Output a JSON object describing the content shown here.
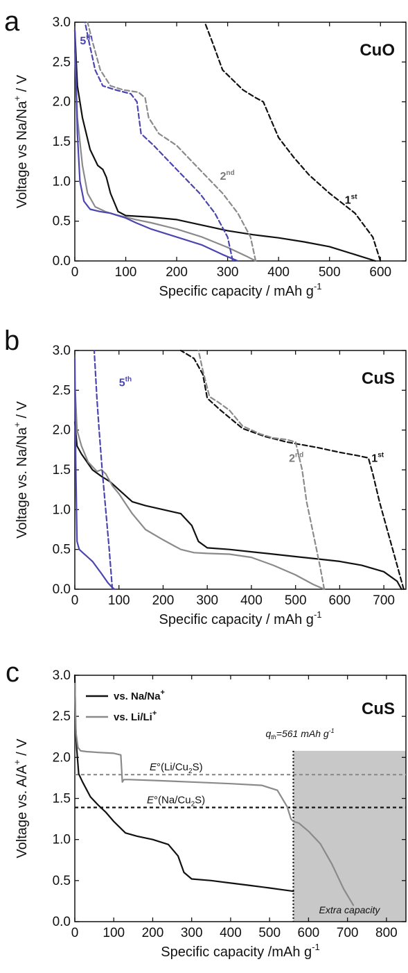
{
  "colors": {
    "black": "#111111",
    "gray": "#8a8a8a",
    "blue": "#4b45b0",
    "shade": "#c8c8c8"
  },
  "chart_data": [
    {
      "panel": "a",
      "type": "line",
      "sample_label": "CuO",
      "xlabel_main": "Specific capacity / mAh g",
      "xlabel_sup": "-1",
      "ylabel_main": "Voltage vs Na/Na",
      "ylabel_sup": "+",
      "ylabel_tail": " / V",
      "xlim": [
        0,
        650
      ],
      "ylim": [
        0,
        3.0
      ],
      "xticks": [
        0,
        100,
        200,
        300,
        400,
        500,
        600
      ],
      "yticks": [
        0.0,
        0.5,
        1.0,
        1.5,
        2.0,
        2.5,
        3.0
      ],
      "cycle_labels": [
        {
          "base": "1",
          "sup": "st",
          "color": "black",
          "x": 530,
          "y": 0.72
        },
        {
          "base": "2",
          "sup": "nd",
          "color": "gray",
          "x": 285,
          "y": 1.02
        },
        {
          "base": "5",
          "sup": "th",
          "color": "blue",
          "x": 10,
          "y": 2.72
        }
      ],
      "series": [
        {
          "cycle": "1st",
          "curve": "discharge",
          "color": "black",
          "dash": false,
          "x": [
            0,
            5,
            15,
            30,
            45,
            55,
            62,
            70,
            85,
            100,
            150,
            200,
            250,
            300,
            350,
            400,
            450,
            500,
            550,
            590
          ],
          "y": [
            2.9,
            2.2,
            1.8,
            1.4,
            1.2,
            1.15,
            1.05,
            0.85,
            0.62,
            0.57,
            0.55,
            0.52,
            0.45,
            0.38,
            0.33,
            0.29,
            0.24,
            0.18,
            0.08,
            0.0
          ]
        },
        {
          "cycle": "1st",
          "curve": "charge",
          "color": "black",
          "dash": true,
          "x": [
            600,
            585,
            550,
            500,
            460,
            430,
            400,
            380,
            370,
            355,
            330,
            290,
            270,
            255
          ],
          "y": [
            0.0,
            0.3,
            0.6,
            0.85,
            1.08,
            1.3,
            1.55,
            1.85,
            2.0,
            2.05,
            2.15,
            2.4,
            2.75,
            3.0
          ]
        },
        {
          "cycle": "2nd",
          "curve": "discharge",
          "color": "gray",
          "dash": false,
          "x": [
            0,
            5,
            15,
            25,
            40,
            60,
            80,
            100,
            120,
            150,
            200,
            250,
            300,
            340,
            355
          ],
          "y": [
            2.6,
            1.8,
            1.2,
            0.85,
            0.68,
            0.62,
            0.58,
            0.55,
            0.52,
            0.48,
            0.4,
            0.3,
            0.17,
            0.05,
            0.0
          ]
        },
        {
          "cycle": "2nd",
          "curve": "charge",
          "color": "gray",
          "dash": true,
          "x": [
            355,
            345,
            320,
            290,
            260,
            230,
            200,
            165,
            145,
            138,
            125,
            95,
            70,
            50,
            35,
            25
          ],
          "y": [
            0.0,
            0.3,
            0.6,
            0.85,
            1.05,
            1.25,
            1.45,
            1.6,
            1.8,
            2.05,
            2.12,
            2.15,
            2.2,
            2.4,
            2.75,
            3.0
          ]
        },
        {
          "cycle": "5th",
          "curve": "discharge",
          "color": "blue",
          "dash": false,
          "x": [
            0,
            5,
            10,
            18,
            30,
            50,
            70,
            90,
            100,
            120,
            150,
            200,
            250,
            290,
            320
          ],
          "y": [
            2.9,
            1.6,
            1.0,
            0.75,
            0.65,
            0.62,
            0.6,
            0.56,
            0.54,
            0.48,
            0.4,
            0.3,
            0.2,
            0.08,
            0.0
          ]
        },
        {
          "cycle": "5th",
          "curve": "charge",
          "color": "blue",
          "dash": true,
          "x": [
            310,
            300,
            275,
            245,
            215,
            185,
            155,
            130,
            122,
            110,
            80,
            55,
            40,
            28,
            20
          ],
          "y": [
            0.0,
            0.3,
            0.6,
            0.85,
            1.05,
            1.25,
            1.45,
            1.6,
            2.0,
            2.1,
            2.15,
            2.2,
            2.4,
            2.75,
            3.0
          ]
        }
      ]
    },
    {
      "panel": "b",
      "type": "line",
      "sample_label": "CuS",
      "xlabel_main": "Specific capacity / mAh g",
      "xlabel_sup": "-1",
      "ylabel_main": "Voltage vs. Na/Na",
      "ylabel_sup": "+",
      "ylabel_tail": " / V",
      "xlim": [
        0,
        750
      ],
      "ylim": [
        0,
        3.0
      ],
      "xticks": [
        0,
        100,
        200,
        300,
        400,
        500,
        600,
        700
      ],
      "yticks": [
        0.0,
        0.5,
        1.0,
        1.5,
        2.0,
        2.5,
        3.0
      ],
      "cycle_labels": [
        {
          "base": "1",
          "sup": "st",
          "color": "black",
          "x": 672,
          "y": 1.6
        },
        {
          "base": "2",
          "sup": "nd",
          "color": "gray",
          "x": 485,
          "y": 1.6
        },
        {
          "base": "5",
          "sup": "th",
          "color": "blue",
          "x": 100,
          "y": 2.55
        }
      ],
      "series": [
        {
          "cycle": "1st",
          "curve": "discharge",
          "color": "black",
          "dash": false,
          "x": [
            0,
            5,
            15,
            40,
            60,
            80,
            100,
            130,
            160,
            200,
            240,
            265,
            280,
            300,
            350,
            400,
            450,
            500,
            550,
            600,
            650,
            700,
            730,
            740
          ],
          "y": [
            2.1,
            1.8,
            1.7,
            1.5,
            1.42,
            1.35,
            1.25,
            1.1,
            1.05,
            1.0,
            0.95,
            0.8,
            0.6,
            0.52,
            0.5,
            0.47,
            0.44,
            0.41,
            0.38,
            0.35,
            0.3,
            0.22,
            0.1,
            0.0
          ]
        },
        {
          "cycle": "1st",
          "curve": "charge",
          "color": "black",
          "dash": true,
          "x": [
            745,
            730,
            710,
            690,
            675,
            665,
            640,
            600,
            550,
            480,
            430,
            380,
            330,
            300,
            290,
            270,
            240
          ],
          "y": [
            0.0,
            0.3,
            0.7,
            1.1,
            1.45,
            1.65,
            1.68,
            1.72,
            1.78,
            1.85,
            1.92,
            2.02,
            2.25,
            2.4,
            2.7,
            2.9,
            3.0
          ]
        },
        {
          "cycle": "2nd",
          "curve": "discharge",
          "color": "gray",
          "dash": false,
          "x": [
            0,
            5,
            15,
            30,
            50,
            60,
            70,
            85,
            100,
            130,
            160,
            200,
            240,
            270,
            300,
            350,
            400,
            450,
            500,
            540,
            565
          ],
          "y": [
            2.6,
            2.0,
            1.8,
            1.6,
            1.48,
            1.5,
            1.45,
            1.3,
            1.2,
            0.95,
            0.75,
            0.62,
            0.5,
            0.46,
            0.45,
            0.44,
            0.4,
            0.3,
            0.18,
            0.06,
            0.0
          ]
        },
        {
          "cycle": "2nd",
          "curve": "charge",
          "color": "gray",
          "dash": true,
          "x": [
            565,
            555,
            540,
            525,
            515,
            500,
            480,
            450,
            420,
            380,
            350,
            325,
            305,
            290,
            280
          ],
          "y": [
            0.0,
            0.3,
            0.7,
            1.1,
            1.5,
            1.85,
            1.88,
            1.9,
            1.95,
            2.05,
            2.25,
            2.35,
            2.42,
            2.75,
            3.0
          ]
        },
        {
          "cycle": "5th",
          "curve": "discharge",
          "color": "blue",
          "dash": false,
          "x": [
            0,
            2,
            5,
            10,
            20,
            40,
            60,
            75,
            85,
            90
          ],
          "y": [
            2.9,
            1.6,
            0.6,
            0.5,
            0.45,
            0.35,
            0.2,
            0.08,
            0.02,
            0.0
          ]
        },
        {
          "cycle": "5th",
          "curve": "charge",
          "color": "blue",
          "dash": true,
          "x": [
            85,
            78,
            70,
            62,
            55,
            50,
            46,
            44
          ],
          "y": [
            0.0,
            0.5,
            1.0,
            1.5,
            2.0,
            2.4,
            2.8,
            3.0
          ]
        }
      ]
    },
    {
      "panel": "c",
      "type": "line",
      "sample_label": "CuS",
      "xlabel_main": "Specific capacity /mAh g",
      "xlabel_sup": "-1",
      "ylabel_main": "Voltage vs. A/A",
      "ylabel_sup": "+",
      "ylabel_tail": " / V",
      "xlim": [
        0,
        850
      ],
      "ylim": [
        0,
        3.0
      ],
      "xticks": [
        0,
        100,
        200,
        300,
        400,
        500,
        600,
        700,
        800
      ],
      "yticks": [
        0.0,
        0.5,
        1.0,
        1.5,
        2.0,
        2.5,
        3.0
      ],
      "legend": [
        {
          "main": "vs. Na/Na",
          "sup": "+",
          "color": "black"
        },
        {
          "main": "vs. Li/Li",
          "sup": "+",
          "color": "gray"
        }
      ],
      "reference_lines": [
        {
          "label_e": "E",
          "label_main": "°(Li/Cu",
          "label_sub": "2",
          "label_tail": "S)",
          "y": 1.79,
          "color": "gray"
        },
        {
          "label_e": "E",
          "label_main": "°(Na/Cu",
          "label_sub": "2",
          "label_tail": "S)",
          "y": 1.39,
          "color": "black"
        }
      ],
      "q_marker": {
        "x": 561,
        "q": "q",
        "q_sub": "th",
        "text": "=561 mAh g",
        "sup": "-1"
      },
      "extra_region": {
        "x0": 561,
        "x1": 850,
        "y0": 0.0,
        "y1": 2.08,
        "label": "Extra capacity"
      },
      "series": [
        {
          "name": "vs. Na/Na+",
          "color": "black",
          "dash": false,
          "x": [
            0,
            2,
            5,
            10,
            20,
            40,
            60,
            80,
            100,
            130,
            160,
            200,
            240,
            265,
            280,
            300,
            350,
            400,
            450,
            500,
            530,
            561
          ],
          "y": [
            3.0,
            2.4,
            2.1,
            1.8,
            1.7,
            1.52,
            1.42,
            1.33,
            1.22,
            1.08,
            1.04,
            1.0,
            0.94,
            0.8,
            0.6,
            0.52,
            0.5,
            0.47,
            0.44,
            0.41,
            0.39,
            0.37
          ]
        },
        {
          "name": "vs. Li/Li+",
          "color": "gray",
          "dash": false,
          "x": [
            0,
            3,
            8,
            15,
            30,
            60,
            100,
            118,
            122,
            126,
            140,
            200,
            300,
            400,
            480,
            520,
            545,
            555,
            561,
            575,
            600,
            630,
            660,
            690,
            715
          ],
          "y": [
            2.9,
            2.3,
            2.12,
            2.08,
            2.07,
            2.06,
            2.05,
            2.03,
            1.7,
            1.73,
            1.73,
            1.72,
            1.7,
            1.68,
            1.66,
            1.6,
            1.4,
            1.25,
            1.22,
            1.2,
            1.1,
            0.95,
            0.7,
            0.4,
            0.2
          ]
        }
      ]
    }
  ]
}
